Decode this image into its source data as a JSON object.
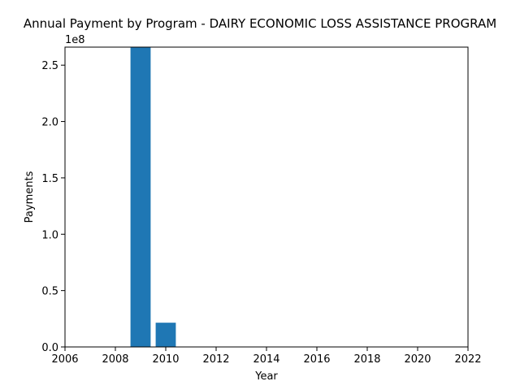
{
  "chart_data": {
    "type": "bar",
    "title": "Annual Payment by Program - DAIRY ECONOMIC LOSS ASSISTANCE PROGRAM",
    "xlabel": "Year",
    "ylabel": "Payments",
    "y_offset_label": "1e8",
    "x": [
      2009,
      2010
    ],
    "values": [
      266000000,
      21500000
    ],
    "bar_width": 0.8,
    "xlim": [
      2006,
      2022
    ],
    "ylim": [
      0,
      266000000
    ],
    "xticks": [
      2006,
      2008,
      2010,
      2012,
      2014,
      2016,
      2018,
      2020,
      2022
    ],
    "xtick_labels": [
      "2006",
      "2008",
      "2010",
      "2012",
      "2014",
      "2016",
      "2018",
      "2020",
      "2022"
    ],
    "yticks": [
      0,
      50000000,
      100000000,
      150000000,
      200000000,
      250000000
    ],
    "ytick_labels": [
      "0.0",
      "0.5",
      "1.0",
      "1.5",
      "2.0",
      "2.5"
    ],
    "bar_color": "#1f77b4",
    "grid": false,
    "legend": "none"
  }
}
